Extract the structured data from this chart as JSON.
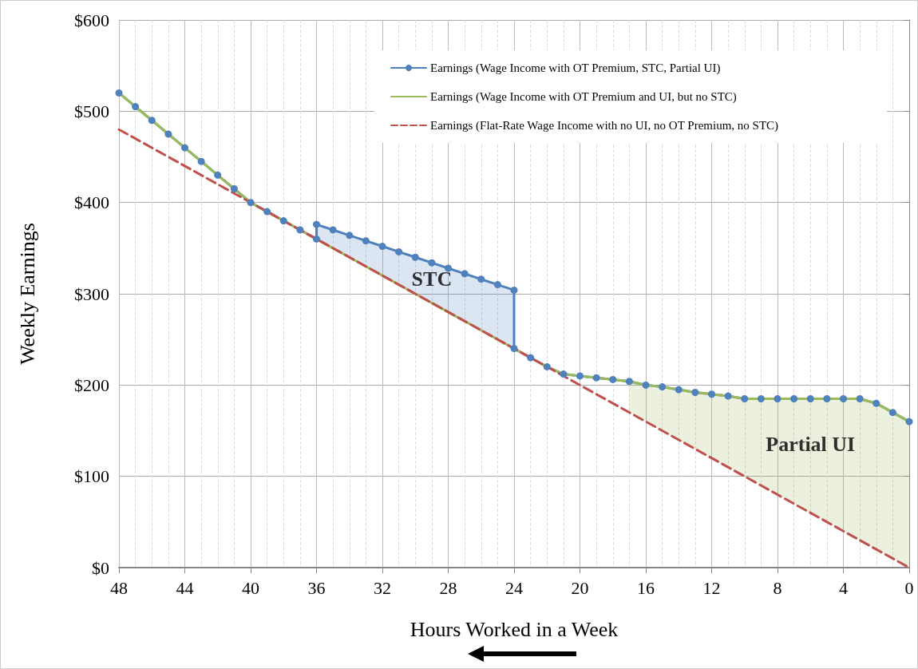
{
  "chart_data": {
    "type": "line",
    "xlabel": "Hours Worked in a Week",
    "ylabel": "Weekly Earnings",
    "xlim": [
      48,
      0
    ],
    "xticks": [
      48,
      44,
      40,
      36,
      32,
      28,
      24,
      20,
      16,
      12,
      8,
      4,
      0
    ],
    "ylim": [
      0,
      600
    ],
    "yticks": [
      {
        "value": 0,
        "label": "$0"
      },
      {
        "value": 100,
        "label": "$100"
      },
      {
        "value": 200,
        "label": "$200"
      },
      {
        "value": 300,
        "label": "$300"
      },
      {
        "value": 400,
        "label": "$400"
      },
      {
        "value": 500,
        "label": "$500"
      },
      {
        "value": 600,
        "label": "$600"
      }
    ],
    "grid": true,
    "legend": "top right",
    "series": [
      {
        "name": "Earnings (Wage Income with OT Premium, STC, Partial UI)",
        "color": "#4f81bd",
        "marker": "circle",
        "line_style": "solid",
        "x": [
          48,
          47,
          46,
          45,
          44,
          43,
          42,
          41,
          40,
          39,
          38,
          37,
          36,
          36,
          35,
          34,
          33,
          32,
          31,
          30,
          29,
          28,
          27,
          26,
          25,
          24,
          24,
          23,
          22,
          21,
          20,
          19,
          18,
          17,
          16,
          15,
          14,
          13,
          12,
          11,
          10,
          9,
          8,
          7,
          6,
          5,
          4,
          3,
          2,
          1,
          0
        ],
        "values": [
          520,
          505,
          490,
          475,
          460,
          445,
          430,
          415,
          400,
          390,
          380,
          370,
          360,
          376,
          370,
          364,
          358,
          352,
          346,
          340,
          334,
          328,
          322,
          316,
          310,
          304,
          240,
          230,
          220,
          212,
          210,
          208,
          206,
          204,
          200,
          198,
          195,
          192,
          190,
          188,
          185,
          185,
          185,
          185,
          185,
          185,
          185,
          185,
          180,
          170,
          160
        ],
        "lower": [
          null,
          null,
          null,
          null,
          null,
          null,
          null,
          null,
          null,
          null,
          null,
          null,
          null,
          360,
          350,
          340,
          330,
          320,
          310,
          300,
          290,
          280,
          270,
          260,
          250,
          240,
          null,
          null,
          null,
          null,
          null,
          null,
          null,
          null,
          null,
          null,
          null,
          null,
          null,
          null,
          null,
          null,
          null,
          null,
          null,
          null,
          null,
          null,
          null,
          null,
          null
        ],
        "upper": [
          null,
          null,
          null,
          null,
          null,
          null,
          null,
          null,
          null,
          null,
          null,
          null,
          null,
          376,
          370,
          364,
          358,
          352,
          346,
          340,
          334,
          328,
          322,
          316,
          310,
          304,
          null,
          null,
          null,
          null,
          null,
          null,
          null,
          null,
          null,
          null,
          null,
          null,
          null,
          null,
          null,
          null,
          null,
          null,
          null,
          null,
          null,
          null,
          null,
          null,
          null
        ]
      },
      {
        "name": "Earnings (Wage Income with OT Premium and UI, but no STC)",
        "color": "#9bbb59",
        "marker": "none",
        "line_style": "solid",
        "x": [
          48,
          47,
          46,
          45,
          44,
          43,
          42,
          41,
          40,
          39,
          38,
          37,
          36,
          35,
          34,
          33,
          32,
          31,
          30,
          29,
          28,
          27,
          26,
          25,
          24,
          23,
          22,
          21,
          20,
          19,
          18,
          17,
          16,
          15,
          14,
          13,
          12,
          11,
          10,
          9,
          8,
          7,
          6,
          5,
          4,
          3,
          2,
          1,
          0
        ],
        "values": [
          520,
          505,
          490,
          475,
          460,
          445,
          430,
          415,
          400,
          390,
          380,
          370,
          360,
          350,
          340,
          330,
          320,
          310,
          300,
          290,
          280,
          270,
          260,
          250,
          240,
          230,
          220,
          212,
          210,
          208,
          206,
          204,
          200,
          198,
          195,
          192,
          190,
          188,
          185,
          185,
          185,
          185,
          185,
          185,
          185,
          185,
          180,
          170,
          160
        ],
        "lower": [
          null,
          null,
          null,
          null,
          null,
          null,
          null,
          null,
          null,
          null,
          null,
          null,
          null,
          null,
          null,
          null,
          null,
          null,
          null,
          null,
          null,
          null,
          null,
          null,
          null,
          null,
          null,
          null,
          null,
          null,
          null,
          170,
          160,
          150,
          140,
          130,
          120,
          110,
          100,
          90,
          80,
          70,
          60,
          50,
          40,
          30,
          20,
          10,
          0
        ],
        "upper": [
          null,
          null,
          null,
          null,
          null,
          null,
          null,
          null,
          null,
          null,
          null,
          null,
          null,
          null,
          null,
          null,
          null,
          null,
          null,
          null,
          null,
          null,
          null,
          null,
          null,
          null,
          null,
          null,
          null,
          null,
          null,
          204,
          200,
          198,
          195,
          192,
          190,
          188,
          185,
          185,
          185,
          185,
          185,
          185,
          185,
          185,
          180,
          170,
          160
        ]
      },
      {
        "name": "Earnings (Flat-Rate Wage Income with no UI, no OT Premium, no STC)",
        "color": "#c0504d",
        "marker": "none",
        "line_style": "dashed",
        "x": [
          48,
          0
        ],
        "values": [
          480,
          0
        ]
      }
    ],
    "annotations": [
      "STC",
      "Partial UI"
    ]
  }
}
